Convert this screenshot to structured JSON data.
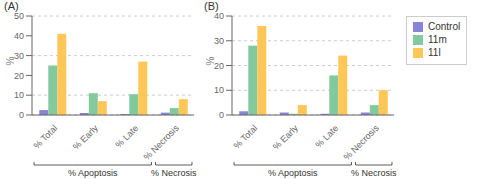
{
  "chart_data": [
    {
      "type": "bar",
      "title": "(A)",
      "ylabel": "%",
      "categories": [
        "% Total",
        "% Early",
        "% Late",
        "% Necrosis"
      ],
      "series": [
        {
          "name": "Control",
          "color": "#8884d8",
          "values": [
            2.5,
            1.0,
            0.5,
            1.2
          ]
        },
        {
          "name": "11m",
          "color": "#82ca9d",
          "values": [
            25.0,
            11.0,
            10.5,
            3.5
          ]
        },
        {
          "name": "11l",
          "color": "#ffc658",
          "values": [
            41.0,
            7.0,
            27.0,
            8.0
          ]
        }
      ],
      "ylim": [
        0,
        50
      ],
      "yticks": [
        0,
        10,
        20,
        30,
        40,
        50
      ],
      "grid": true,
      "annotations": [
        {
          "text": "% Apoptosis",
          "from": "% Total",
          "to": "% Late"
        },
        {
          "text": "% Necrosis",
          "from": "% Necrosis",
          "to": "% Necrosis"
        }
      ]
    },
    {
      "type": "bar",
      "title": "(B)",
      "ylabel": "%",
      "categories": [
        "% Total",
        "% Early",
        "% Late",
        "% Necrosis"
      ],
      "series": [
        {
          "name": "Control",
          "color": "#8884d8",
          "values": [
            1.5,
            1.0,
            0.5,
            1.0
          ]
        },
        {
          "name": "11m",
          "color": "#82ca9d",
          "values": [
            28.0,
            0.5,
            16.0,
            4.0
          ]
        },
        {
          "name": "11l",
          "color": "#ffc658",
          "values": [
            36.0,
            4.0,
            24.0,
            10.0
          ]
        }
      ],
      "ylim": [
        0,
        40
      ],
      "yticks": [
        0,
        10,
        20,
        30,
        40
      ],
      "grid": true,
      "legend": "upper right",
      "annotations": [
        {
          "text": "% Apoptosis",
          "from": "% Total",
          "to": "% Late"
        },
        {
          "text": "% Necrosis",
          "from": "% Necrosis",
          "to": "% Necrosis"
        }
      ]
    }
  ]
}
